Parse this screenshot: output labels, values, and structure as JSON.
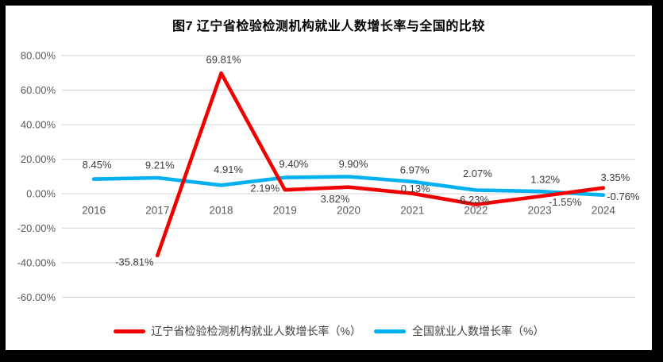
{
  "frame": {
    "outer_border_color": "#000000",
    "canvas_background": "#ffffff"
  },
  "chart_data": {
    "type": "line",
    "title": "图7  辽宁省检验检测机构就业人数增长率与全国的比较",
    "categories": [
      "2016",
      "2017",
      "2018",
      "2019",
      "2020",
      "2021",
      "2022",
      "2023",
      "2024"
    ],
    "yticks": [
      "80.00%",
      "60.00%",
      "40.00%",
      "20.00%",
      "0.00%",
      "-20.00%",
      "-40.00%",
      "-60.00%"
    ],
    "ylim": [
      -60,
      80
    ],
    "ytick_step": 20,
    "grid": true,
    "legend_position": "bottom",
    "colors": {
      "gridline": "#d9d9d9",
      "axis_text": "#595959",
      "data_label_text": "#3b3b3b",
      "title_text": "#000000",
      "liaoning_red": "#f20000",
      "national_blue": "#00b0f0"
    },
    "series": [
      {
        "name": "辽宁省检验检测机构就业人数增长率（%）",
        "color": "#f20000",
        "values": [
          null,
          -35.81,
          69.81,
          2.19,
          3.82,
          0.13,
          -6.23,
          -1.55,
          3.35
        ],
        "labels": [
          null,
          "-35.81%",
          "69.81%",
          "2.19%",
          "3.82%",
          "0.13%",
          "-6.23%",
          "-1.55%",
          "3.35%"
        ],
        "label_offsets": [
          null,
          [
            -29,
            8
          ],
          [
            3,
            -17
          ],
          [
            -25,
            -2
          ],
          [
            -17,
            15
          ],
          [
            4,
            -6
          ],
          [
            -4,
            -6
          ],
          [
            32,
            7
          ],
          [
            15,
            -13
          ]
        ]
      },
      {
        "name": "全国就业人数增长率（%）",
        "color": "#00b0f0",
        "values": [
          8.45,
          9.21,
          4.91,
          9.4,
          9.9,
          6.97,
          2.07,
          1.32,
          -0.76
        ],
        "labels": [
          "8.45%",
          "9.21%",
          "4.91%",
          "9.40%",
          "9.90%",
          "6.97%",
          "2.07%",
          "1.32%",
          "-0.76%"
        ],
        "label_offsets": [
          [
            4,
            -18
          ],
          [
            3,
            -16
          ],
          [
            9,
            -20
          ],
          [
            11,
            -17
          ],
          [
            6,
            -16
          ],
          [
            3,
            -15
          ],
          [
            2,
            -21
          ],
          [
            7,
            -15
          ],
          [
            25,
            2
          ]
        ]
      }
    ]
  }
}
